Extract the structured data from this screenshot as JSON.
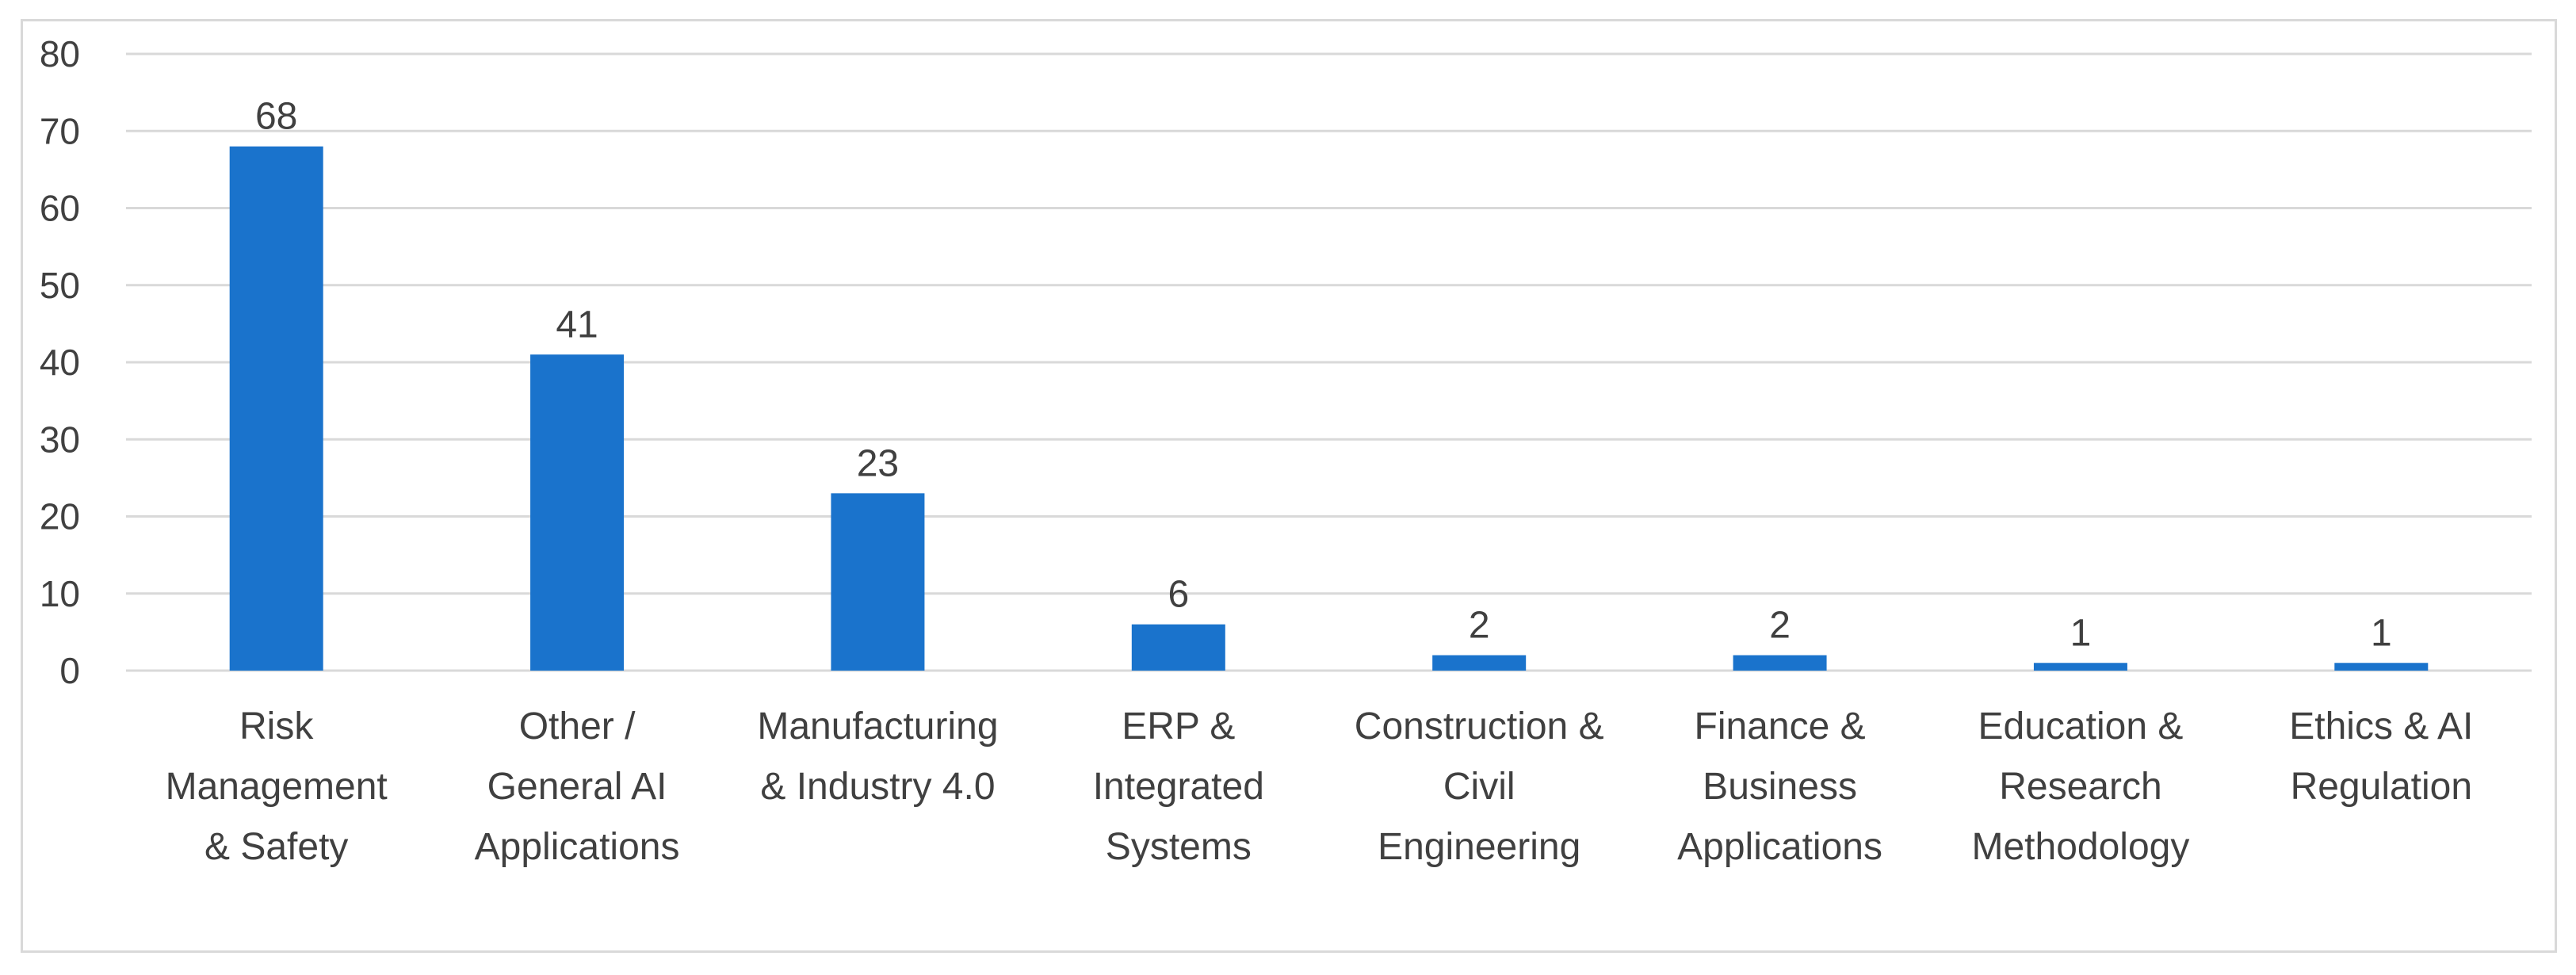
{
  "chart_data": {
    "type": "bar",
    "title": "",
    "xlabel": "",
    "ylabel": "",
    "ylim": [
      0,
      80
    ],
    "yticks": [
      0,
      10,
      20,
      30,
      40,
      50,
      60,
      70,
      80
    ],
    "grid": true,
    "legend": "none",
    "color": "#1a73cc",
    "categories": [
      [
        "Risk",
        "Management",
        "& Safety"
      ],
      [
        "Other /",
        "General AI",
        "Applications"
      ],
      [
        "Manufacturing",
        "& Industry 4.0"
      ],
      [
        "ERP &",
        "Integrated",
        "Systems"
      ],
      [
        "Construction &",
        "Civil",
        "Engineering"
      ],
      [
        "Finance &",
        "Business",
        "Applications"
      ],
      [
        "Education &",
        "Research",
        "Methodology"
      ],
      [
        "Ethics & AI",
        "Regulation"
      ]
    ],
    "values": [
      68,
      41,
      23,
      6,
      2,
      2,
      1,
      1
    ]
  }
}
